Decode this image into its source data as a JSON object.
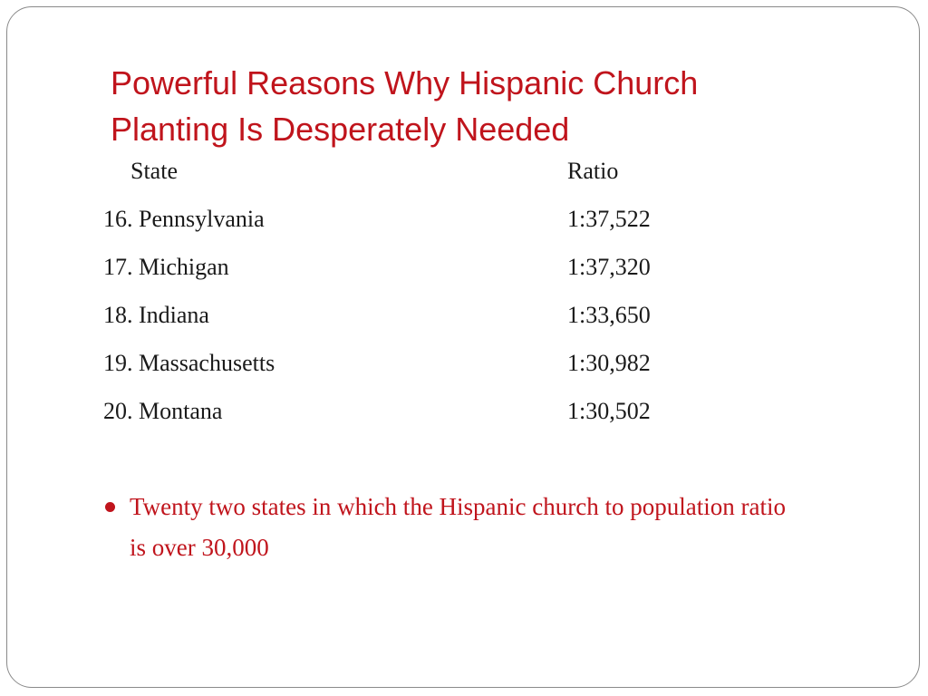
{
  "slide": {
    "title_lines": [
      "Powerful Reasons Why Hispanic Church",
      "Planting Is Desperately Needed"
    ],
    "table": {
      "headers": {
        "state": "State",
        "ratio": "Ratio"
      },
      "rows": [
        {
          "state": "16. Pennsylvania",
          "ratio": "1:37,522"
        },
        {
          "state": "17. Michigan",
          "ratio": "1:37,320"
        },
        {
          "state": "18. Indiana",
          "ratio": "1:33,650"
        },
        {
          "state": "19. Massachusetts",
          "ratio": "1:30,982"
        },
        {
          "state": "20. Montana",
          "ratio": "1:30,502"
        }
      ]
    },
    "bullets": [
      "Twenty two states in which the Hispanic church to population ratio is over 30,000"
    ]
  },
  "colors": {
    "accent": "#c0141c",
    "text": "#1a1a1a",
    "border": "#8a8a8a"
  }
}
